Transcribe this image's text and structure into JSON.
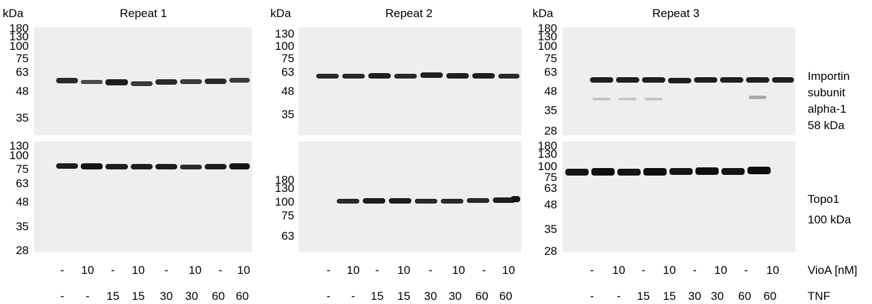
{
  "unit_label": "kDa",
  "repeats": [
    {
      "title": "Repeat 1",
      "top_markers": [
        "180",
        "130",
        "100",
        "75",
        "63",
        "48",
        "35"
      ],
      "bottom_markers": [
        "130",
        "100",
        "75",
        "63",
        "48",
        "35",
        "28"
      ]
    },
    {
      "title": "Repeat 2",
      "top_markers": [
        "130",
        "100",
        "75",
        "63",
        "48",
        "35"
      ],
      "bottom_markers": [
        "180",
        "130",
        "100",
        "75",
        "63"
      ]
    },
    {
      "title": "Repeat 3",
      "top_markers": [
        "180",
        "130",
        "100",
        "75",
        "63",
        "48",
        "35",
        "28"
      ],
      "bottom_markers": [
        "180",
        "130",
        "100",
        "75",
        "63",
        "48",
        "35",
        "28"
      ]
    }
  ],
  "protein_labels": {
    "top": [
      "Importin",
      "subunit",
      "alpha-1",
      "58 kDa"
    ],
    "bottom": [
      "Topo1",
      "100 kDa"
    ]
  },
  "lane_labels": {
    "vioa": [
      "-",
      "10",
      "-",
      "10",
      "-",
      "10",
      "-",
      "10"
    ],
    "tnf": [
      "-",
      "-",
      "15",
      "15",
      "30",
      "30",
      "60",
      "60"
    ],
    "vioa_title": "VioA [nM]",
    "tnf_title": "TNF"
  }
}
